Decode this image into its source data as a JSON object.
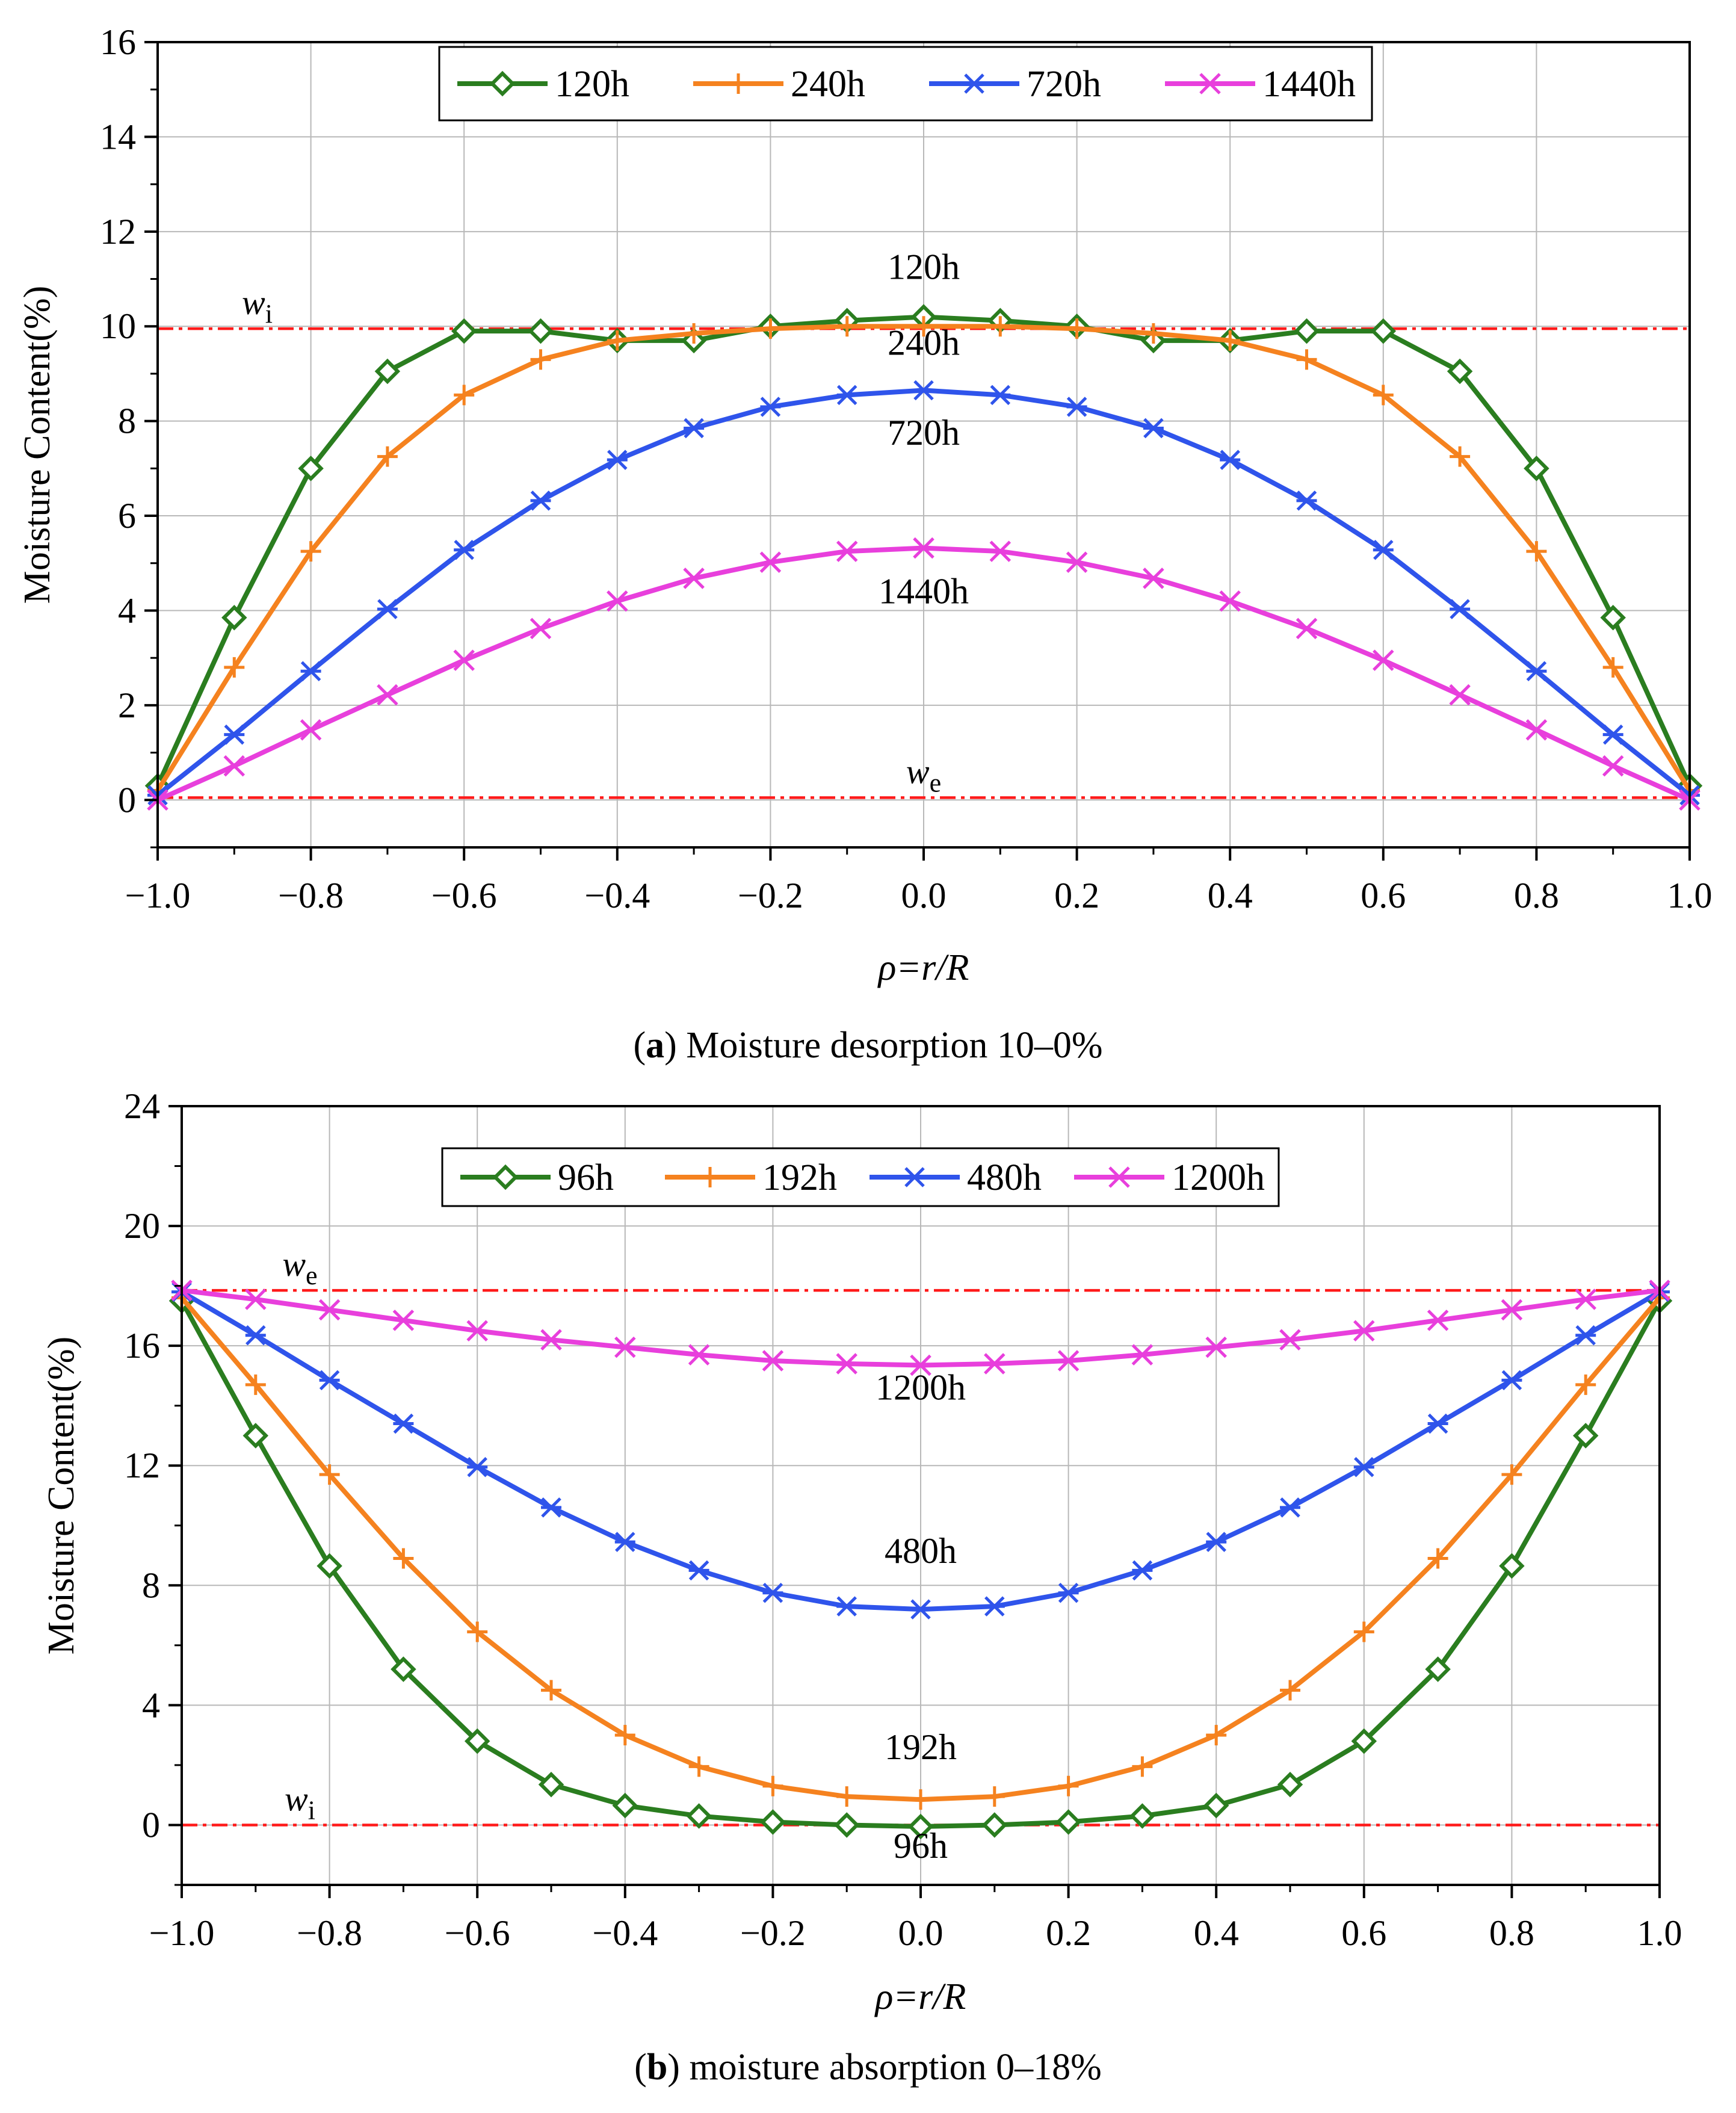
{
  "chart_data": [
    {
      "type": "line",
      "id": "a",
      "x": [
        -1.0,
        -0.9,
        -0.8,
        -0.7,
        -0.6,
        -0.5,
        -0.4,
        -0.3,
        -0.2,
        -0.1,
        0.0,
        0.1,
        0.2,
        0.3,
        0.4,
        0.5,
        0.6,
        0.7,
        0.8,
        0.9,
        1.0
      ],
      "series": [
        {
          "name": "120h",
          "color": "#2a7d1f",
          "marker": "diamond",
          "values": [
            0.3,
            3.85,
            7.0,
            9.05,
            9.9,
            9.9,
            9.7,
            9.7,
            10.0,
            10.12,
            10.2,
            10.12,
            10.0,
            9.7,
            9.7,
            9.9,
            9.9,
            9.05,
            7.0,
            3.85,
            0.3
          ]
        },
        {
          "name": "240h",
          "color": "#f5821f",
          "marker": "plus",
          "values": [
            0.2,
            2.8,
            5.25,
            7.25,
            8.55,
            9.3,
            9.7,
            9.85,
            9.95,
            10.0,
            10.0,
            10.0,
            9.95,
            9.85,
            9.7,
            9.3,
            8.55,
            7.25,
            5.25,
            2.8,
            0.2
          ]
        },
        {
          "name": "720h",
          "color": "#2f54eb",
          "marker": "asterisk",
          "values": [
            0.1,
            1.38,
            2.72,
            4.03,
            5.28,
            6.32,
            7.18,
            7.85,
            8.3,
            8.55,
            8.65,
            8.55,
            8.3,
            7.85,
            7.18,
            6.32,
            5.28,
            4.03,
            2.72,
            1.38,
            0.1
          ]
        },
        {
          "name": "1440h",
          "color": "#e83fdc",
          "marker": "x",
          "values": [
            0.0,
            0.72,
            1.48,
            2.22,
            2.95,
            3.62,
            4.2,
            4.68,
            5.02,
            5.25,
            5.32,
            5.25,
            5.02,
            4.68,
            4.2,
            3.62,
            2.95,
            2.22,
            1.48,
            0.72,
            0.0
          ]
        }
      ],
      "reference_lines": [
        {
          "label": "w",
          "sub": "i",
          "value": 9.95,
          "label_x": -0.87
        },
        {
          "label": "w",
          "sub": "e",
          "value": 0.05,
          "label_x": 0.0
        }
      ],
      "annotations": [
        {
          "text": "120h",
          "x": 0.0,
          "y": 11.0
        },
        {
          "text": "240h",
          "x": 0.0,
          "y": 9.4
        },
        {
          "text": "720h",
          "x": 0.0,
          "y": 7.5
        },
        {
          "text": "1440h",
          "x": 0.0,
          "y": 4.15
        }
      ],
      "xlabel": "ρ=r/R",
      "ylabel": "Moisture Content(%)",
      "xlim": [
        -1.0,
        1.0
      ],
      "ylim": [
        -1.0,
        16.0
      ],
      "xticks": [
        -1.0,
        -0.8,
        -0.6,
        -0.4,
        -0.2,
        0.0,
        0.2,
        0.4,
        0.6,
        0.8,
        1.0
      ],
      "xtick_labels": [
        "−1.0",
        "−0.8",
        "−0.6",
        "−0.4",
        "−0.2",
        "0.0",
        "0.2",
        "0.4",
        "0.6",
        "0.8",
        "1.0"
      ],
      "yticks": [
        0,
        2,
        4,
        6,
        8,
        10,
        12,
        14,
        16
      ],
      "ytick_labels": [
        "0",
        "2",
        "4",
        "6",
        "8",
        "10",
        "12",
        "14",
        "16"
      ],
      "grid": true,
      "legend": "top-center"
    },
    {
      "type": "line",
      "id": "b",
      "x": [
        -1.0,
        -0.9,
        -0.8,
        -0.7,
        -0.6,
        -0.5,
        -0.4,
        -0.3,
        -0.2,
        -0.1,
        0.0,
        0.1,
        0.2,
        0.3,
        0.4,
        0.5,
        0.6,
        0.7,
        0.8,
        0.9,
        1.0
      ],
      "series": [
        {
          "name": "96h",
          "color": "#2a7d1f",
          "marker": "diamond",
          "values": [
            17.5,
            13.0,
            8.65,
            5.2,
            2.8,
            1.35,
            0.65,
            0.3,
            0.1,
            0.0,
            -0.05,
            0.0,
            0.1,
            0.3,
            0.65,
            1.35,
            2.8,
            5.2,
            8.65,
            13.0,
            17.5
          ]
        },
        {
          "name": "192h",
          "color": "#f5821f",
          "marker": "plus",
          "values": [
            17.6,
            14.7,
            11.7,
            8.9,
            6.45,
            4.5,
            3.0,
            1.95,
            1.3,
            0.95,
            0.85,
            0.95,
            1.3,
            1.95,
            3.0,
            4.5,
            6.45,
            8.9,
            11.7,
            14.7,
            17.6
          ]
        },
        {
          "name": "480h",
          "color": "#2f54eb",
          "marker": "asterisk",
          "values": [
            17.8,
            16.35,
            14.85,
            13.4,
            11.95,
            10.6,
            9.45,
            8.5,
            7.75,
            7.3,
            7.2,
            7.3,
            7.75,
            8.5,
            9.45,
            10.6,
            11.95,
            13.4,
            14.85,
            16.35,
            17.8
          ]
        },
        {
          "name": "1200h",
          "color": "#e83fdc",
          "marker": "x",
          "values": [
            17.85,
            17.55,
            17.2,
            16.85,
            16.5,
            16.2,
            15.95,
            15.7,
            15.5,
            15.4,
            15.35,
            15.4,
            15.5,
            15.7,
            15.95,
            16.2,
            16.5,
            16.85,
            17.2,
            17.55,
            17.85
          ]
        }
      ],
      "reference_lines": [
        {
          "label": "w",
          "sub": "e",
          "value": 17.85,
          "label_x": -0.84
        },
        {
          "label": "w",
          "sub": "i",
          "value": 0.0,
          "label_x": -0.84
        }
      ],
      "annotations": [
        {
          "text": "1200h",
          "x": 0.0,
          "y": 14.2
        },
        {
          "text": "480h",
          "x": 0.0,
          "y": 8.75
        },
        {
          "text": "192h",
          "x": 0.0,
          "y": 2.2
        },
        {
          "text": "96h",
          "x": 0.0,
          "y": -1.1
        }
      ],
      "xlabel": "ρ=r/R",
      "ylabel": "Moisture Content(%)",
      "xlim": [
        -1.0,
        1.0
      ],
      "ylim": [
        -2.0,
        24.0
      ],
      "xticks": [
        -1.0,
        -0.8,
        -0.6,
        -0.4,
        -0.2,
        0.0,
        0.2,
        0.4,
        0.6,
        0.8,
        1.0
      ],
      "xtick_labels": [
        "−1.0",
        "−0.8",
        "−0.6",
        "−0.4",
        "−0.2",
        "0.0",
        "0.2",
        "0.4",
        "0.6",
        "0.8",
        "1.0"
      ],
      "yticks": [
        0,
        4,
        8,
        12,
        16,
        20,
        24
      ],
      "ytick_labels": [
        "0",
        "4",
        "8",
        "12",
        "16",
        "20",
        "24"
      ],
      "grid": true,
      "legend": "top-center"
    }
  ],
  "captions": {
    "a": {
      "label": "a",
      "text": " Moisture desorption 10–0%"
    },
    "b": {
      "label": "b",
      "text": " moisture absorption 0–18%"
    }
  }
}
